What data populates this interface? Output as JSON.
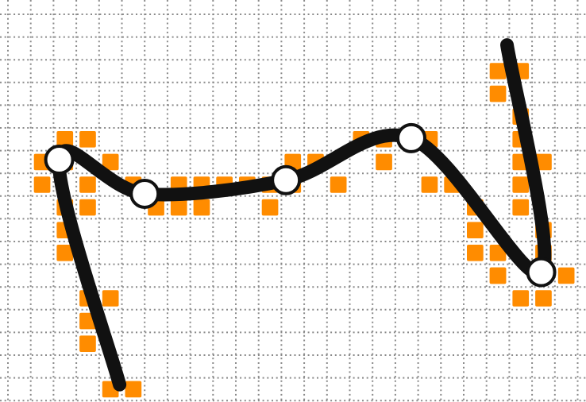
{
  "canvas": {
    "background": "#ffffff",
    "grid_color": "#8a8a8a",
    "grid_style": "dotted",
    "cell_count_x": 26,
    "cell_count_y": 18
  },
  "raster": {
    "color": "#ff8c00",
    "cells": [
      [
        2,
        5
      ],
      [
        3,
        5
      ],
      [
        1,
        6
      ],
      [
        2,
        6
      ],
      [
        4,
        6
      ],
      [
        1,
        7
      ],
      [
        3,
        7
      ],
      [
        2,
        8
      ],
      [
        3,
        8
      ],
      [
        2,
        9
      ],
      [
        2,
        10
      ],
      [
        3,
        12
      ],
      [
        4,
        12
      ],
      [
        3,
        13
      ],
      [
        3,
        14
      ],
      [
        4,
        16
      ],
      [
        5,
        16
      ],
      [
        5,
        7
      ],
      [
        7,
        7
      ],
      [
        8,
        7
      ],
      [
        9,
        7
      ],
      [
        10,
        7
      ],
      [
        11,
        7
      ],
      [
        11,
        8
      ],
      [
        6,
        8
      ],
      [
        7,
        8
      ],
      [
        8,
        8
      ],
      [
        12,
        6
      ],
      [
        13,
        6
      ],
      [
        12,
        7
      ],
      [
        14,
        7
      ],
      [
        15,
        5
      ],
      [
        16,
        5
      ],
      [
        17,
        5
      ],
      [
        18,
        5
      ],
      [
        16,
        6
      ],
      [
        18,
        7
      ],
      [
        19,
        7
      ],
      [
        20,
        8
      ],
      [
        20,
        9
      ],
      [
        21,
        10
      ],
      [
        20,
        10
      ],
      [
        21,
        11
      ],
      [
        21,
        2
      ],
      [
        22,
        2
      ],
      [
        21,
        3
      ],
      [
        22,
        4
      ],
      [
        22,
        5
      ],
      [
        22,
        6
      ],
      [
        22,
        7
      ],
      [
        23,
        6
      ],
      [
        22,
        8
      ],
      [
        23,
        9
      ],
      [
        23,
        10
      ],
      [
        21,
        11
      ],
      [
        24,
        11
      ],
      [
        22,
        12
      ],
      [
        23,
        12
      ]
    ]
  },
  "curve": {
    "stroke_color": "#111111",
    "handle_fill": "#ffffff",
    "handle_stroke": "#111111",
    "control_points": [
      [
        2.25,
        6.4
      ],
      [
        6.0,
        7.9
      ],
      [
        12.2,
        7.3
      ],
      [
        17.7,
        5.45
      ],
      [
        23.4,
        11.35
      ]
    ],
    "tail_start": [
      4.9,
      16.3
    ],
    "head_end": [
      21.9,
      1.35
    ]
  }
}
